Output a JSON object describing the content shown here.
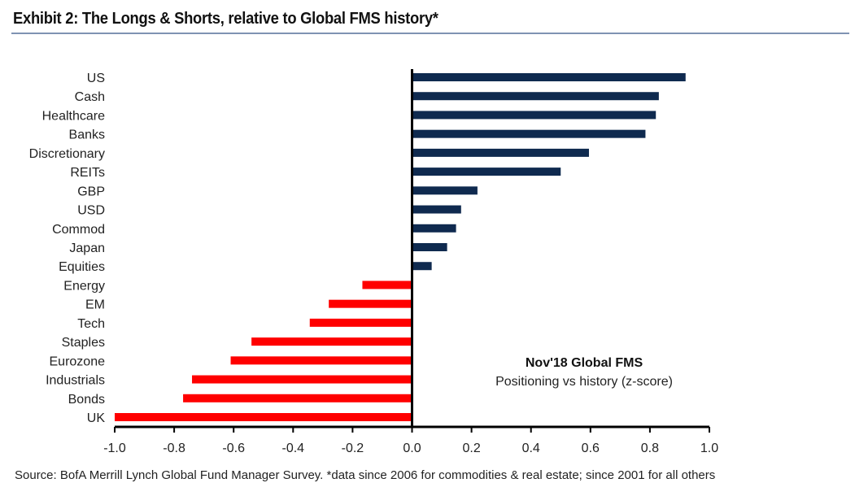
{
  "chart_data": {
    "type": "bar",
    "orientation": "horizontal",
    "title": "Exhibit 2: The Longs & Shorts, relative to Global FMS history*",
    "annotation_title": "Nov'18 Global FMS",
    "annotation_subtitle": "Positioning vs history (z-score)",
    "categories": [
      "US",
      "Cash",
      "Healthcare",
      "Banks",
      "Discretionary",
      "REITs",
      "GBP",
      "USD",
      "Commod",
      "Japan",
      "Equities",
      "Energy",
      "EM",
      "Tech",
      "Staples",
      "Eurozone",
      "Industrials",
      "Bonds",
      "UK"
    ],
    "values": [
      0.92,
      0.83,
      0.82,
      0.785,
      0.595,
      0.5,
      0.22,
      0.165,
      0.148,
      0.118,
      0.066,
      -0.167,
      -0.28,
      -0.344,
      -0.54,
      -0.61,
      -0.74,
      -0.77,
      -1.0
    ],
    "xlim": [
      -1.0,
      1.0
    ],
    "xticks": [
      "-1.0",
      "-0.8",
      "-0.6",
      "-0.4",
      "-0.2",
      "0.0",
      "0.2",
      "0.4",
      "0.6",
      "0.8",
      "1.0"
    ],
    "grid": false,
    "colors": {
      "positive": "#0f2a4f",
      "negative": "#ff0000"
    },
    "source": "Source:  BofA Merrill Lynch Global Fund Manager Survey. *data since 2006 for commodities & real estate; since 2001  for all others"
  }
}
